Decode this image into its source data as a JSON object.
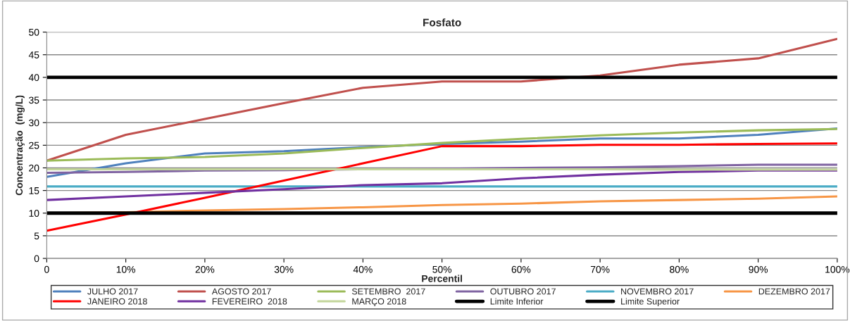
{
  "chart_data": {
    "type": "line",
    "title": "Fosfato",
    "xlabel": "Percentil",
    "ylabel": "Concentração  (mg/L)",
    "x": [
      0,
      10,
      20,
      30,
      40,
      50,
      60,
      70,
      80,
      90,
      100
    ],
    "xlim": [
      0,
      100
    ],
    "xticks": [
      0,
      {
        "value": 10,
        "label": "10%"
      },
      {
        "value": 20,
        "label": "20%"
      },
      {
        "value": 30,
        "label": "30%"
      },
      {
        "value": 40,
        "label": "40%"
      },
      {
        "value": 50,
        "label": "50%"
      },
      {
        "value": 60,
        "label": "60%"
      },
      {
        "value": 70,
        "label": "70%"
      },
      {
        "value": 80,
        "label": "80%"
      },
      {
        "value": 90,
        "label": "90%"
      },
      {
        "value": 100,
        "label": "100%"
      }
    ],
    "ylim": [
      0,
      50
    ],
    "yticks": [
      0,
      5,
      10,
      15,
      20,
      25,
      30,
      35,
      40,
      45,
      50
    ],
    "grid": "y",
    "legend": "bottom",
    "marker": "none",
    "line_style": "solid",
    "series": [
      {
        "name": "JULHO 2017",
        "color": "#4f81bd",
        "values": [
          18,
          21,
          23.2,
          23.7,
          24.6,
          25.3,
          25.8,
          26.5,
          26.5,
          27.3,
          28.7
        ]
      },
      {
        "name": "AGOSTO 2017",
        "color": "#c0504d",
        "values": [
          21.6,
          27.3,
          30.8,
          34.3,
          37.7,
          39.1,
          39.1,
          40.4,
          42.8,
          44.2,
          48.5
        ]
      },
      {
        "name": "SETEMBRO  2017",
        "color": "#9bbb59",
        "values": [
          21.6,
          22.1,
          22.4,
          23.2,
          24.4,
          25.5,
          26.4,
          27.2,
          27.8,
          28.3,
          28.6
        ]
      },
      {
        "name": "OUTUBRO 2017",
        "color": "#8064a2",
        "values": [
          18.9,
          19.1,
          19.4,
          19.5,
          19.7,
          19.8,
          20.0,
          20.1,
          20.4,
          20.7,
          20.7
        ]
      },
      {
        "name": "NOVEMBRO 2017",
        "color": "#4bacc6",
        "values": [
          15.9,
          15.9,
          15.9,
          15.9,
          15.9,
          15.9,
          15.9,
          15.9,
          15.9,
          15.9,
          15.9
        ]
      },
      {
        "name": "DEZEMBRO 2017",
        "color": "#f79646",
        "values": [
          10.0,
          10.2,
          10.6,
          10.9,
          11.3,
          11.8,
          12.1,
          12.6,
          12.9,
          13.2,
          13.7
        ]
      },
      {
        "name": "JANEIRO 2018",
        "color": "#ff0000",
        "values": [
          6.1,
          9.7,
          13.4,
          17.2,
          21.0,
          24.8,
          24.8,
          25.1,
          25.1,
          25.3,
          25.4
        ]
      },
      {
        "name": "FEVEREIRO  2018",
        "color": "#7030a0",
        "values": [
          12.9,
          13.7,
          14.5,
          15.3,
          16.2,
          16.6,
          17.7,
          18.5,
          19.1,
          19.4,
          19.4
        ]
      },
      {
        "name": "MARÇO 2018",
        "color": "#c3d69b",
        "values": [
          19.7,
          19.7,
          19.7,
          19.7,
          19.7,
          19.7,
          19.7,
          19.7,
          19.6,
          19.6,
          19.6
        ]
      },
      {
        "name": "Limite Inferior",
        "color": "#000000",
        "values": [
          10,
          10,
          10,
          10,
          10,
          10,
          10,
          10,
          10,
          10,
          10
        ]
      },
      {
        "name": "Limite Superior",
        "color": "#000000",
        "values": [
          40,
          40,
          40,
          40,
          40,
          40,
          40,
          40,
          40,
          40,
          40
        ]
      }
    ]
  }
}
